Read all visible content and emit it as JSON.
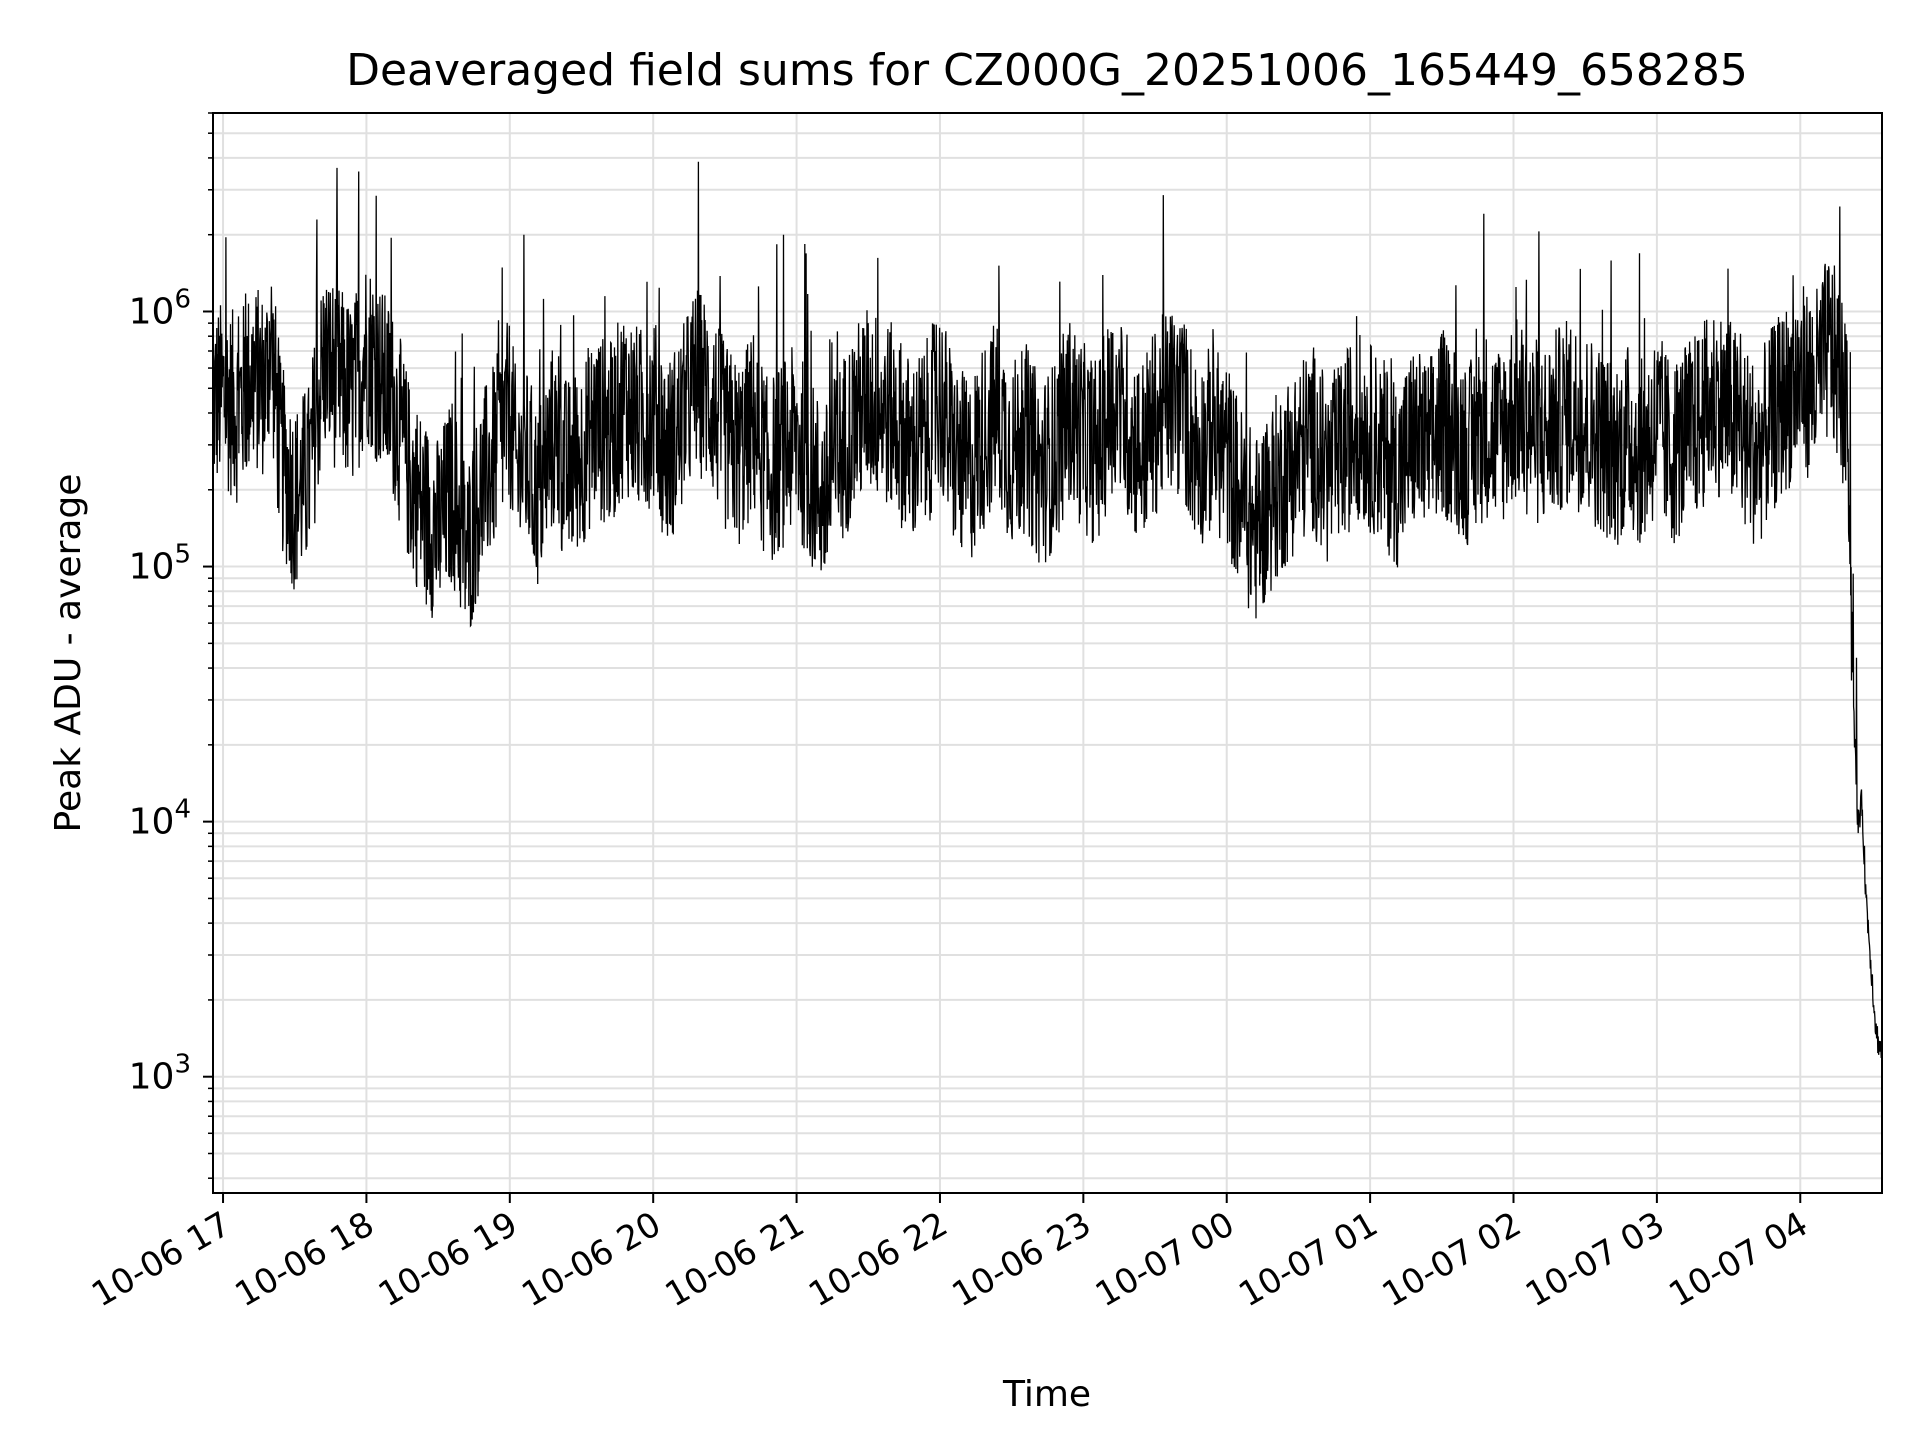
{
  "chart_data": {
    "type": "line",
    "title": "Deaveraged field sums for CZ000G_20251006_165449_658285",
    "xlabel": "Time",
    "ylabel": "Peak ADU - average",
    "yscale": "log",
    "ylim": [
      350,
      6000000
    ],
    "xlim_hours": [
      -0.07,
      11.57
    ],
    "x_unit": "hours since 10-06 17:00",
    "grid": true,
    "line_color": "#000000",
    "grid_color": "#e0e0e0",
    "x_ticks": [
      {
        "label": "10-06 17",
        "value": 0
      },
      {
        "label": "10-06 18",
        "value": 1
      },
      {
        "label": "10-06 19",
        "value": 2
      },
      {
        "label": "10-06 20",
        "value": 3
      },
      {
        "label": "10-06 21",
        "value": 4
      },
      {
        "label": "10-06 22",
        "value": 5
      },
      {
        "label": "10-06 23",
        "value": 6
      },
      {
        "label": "10-07 00",
        "value": 7
      },
      {
        "label": "10-07 01",
        "value": 8
      },
      {
        "label": "10-07 02",
        "value": 9
      },
      {
        "label": "10-07 03",
        "value": 10
      },
      {
        "label": "10-07 04",
        "value": 11
      }
    ],
    "y_ticks": [
      {
        "base": "10",
        "exp": "3",
        "value": 1000
      },
      {
        "base": "10",
        "exp": "4",
        "value": 10000
      },
      {
        "base": "10",
        "exp": "5",
        "value": 100000
      },
      {
        "base": "10",
        "exp": "6",
        "value": 1000000
      }
    ],
    "series": [
      {
        "name": "Deaveraged field sum",
        "x": [
          -0.07,
          0.0,
          0.1,
          0.2,
          0.3,
          0.33,
          0.4,
          0.5,
          0.6,
          0.7,
          0.8,
          0.9,
          1.0,
          1.1,
          1.2,
          1.3,
          1.4,
          1.5,
          1.6,
          1.7,
          1.8,
          1.9,
          2.0,
          2.05,
          2.1,
          2.2,
          2.3,
          2.4,
          2.5,
          2.6,
          2.7,
          2.8,
          2.9,
          3.0,
          3.1,
          3.2,
          3.3,
          3.4,
          3.5,
          3.6,
          3.7,
          3.8,
          3.9,
          4.0,
          4.1,
          4.2,
          4.3,
          4.4,
          4.5,
          4.6,
          4.7,
          4.8,
          4.9,
          5.0,
          5.1,
          5.2,
          5.3,
          5.4,
          5.5,
          5.6,
          5.7,
          5.8,
          5.9,
          6.0,
          6.1,
          6.2,
          6.3,
          6.4,
          6.5,
          6.6,
          6.7,
          6.8,
          6.9,
          7.0,
          7.1,
          7.2,
          7.3,
          7.4,
          7.5,
          7.6,
          7.7,
          7.8,
          7.9,
          8.0,
          8.1,
          8.2,
          8.3,
          8.4,
          8.5,
          8.6,
          8.7,
          8.8,
          8.9,
          9.0,
          9.1,
          9.2,
          9.3,
          9.4,
          9.5,
          9.6,
          9.7,
          9.8,
          9.9,
          10.0,
          10.1,
          10.2,
          10.3,
          10.4,
          10.5,
          10.6,
          10.7,
          10.8,
          10.9,
          11.0,
          11.1,
          11.2,
          11.28,
          11.3,
          11.34,
          11.37,
          11.4,
          11.43,
          11.46,
          11.5,
          11.53,
          11.56
        ],
        "values": [
          480000,
          520000,
          450000,
          600000,
          560000,
          900000,
          300000,
          200000,
          250000,
          700000,
          600000,
          500000,
          800000,
          600000,
          450000,
          250000,
          180000,
          150000,
          220000,
          120000,
          220000,
          300000,
          450000,
          250000,
          300000,
          200000,
          350000,
          250000,
          300000,
          400000,
          350000,
          500000,
          400000,
          450000,
          300000,
          400000,
          600000,
          500000,
          350000,
          300000,
          400000,
          250000,
          300000,
          350000,
          250000,
          200000,
          300000,
          400000,
          500000,
          450000,
          400000,
          300000,
          350000,
          500000,
          300000,
          250000,
          350000,
          450000,
          300000,
          350000,
          250000,
          300000,
          450000,
          350000,
          300000,
          500000,
          400000,
          300000,
          400000,
          500000,
          450000,
          300000,
          350000,
          300000,
          200000,
          150000,
          200000,
          250000,
          300000,
          350000,
          250000,
          300000,
          400000,
          350000,
          300000,
          250000,
          350000,
          300000,
          400000,
          350000,
          300000,
          400000,
          350000,
          450000,
          400000,
          350000,
          400000,
          450000,
          400000,
          350000,
          300000,
          350000,
          300000,
          400000,
          300000,
          350000,
          400000,
          500000,
          450000,
          350000,
          300000,
          400000,
          500000,
          600000,
          550000,
          800000,
          600000,
          500000,
          300000,
          30000,
          10000,
          12000,
          5000,
          2500,
          1500,
          1300
        ]
      }
    ]
  }
}
